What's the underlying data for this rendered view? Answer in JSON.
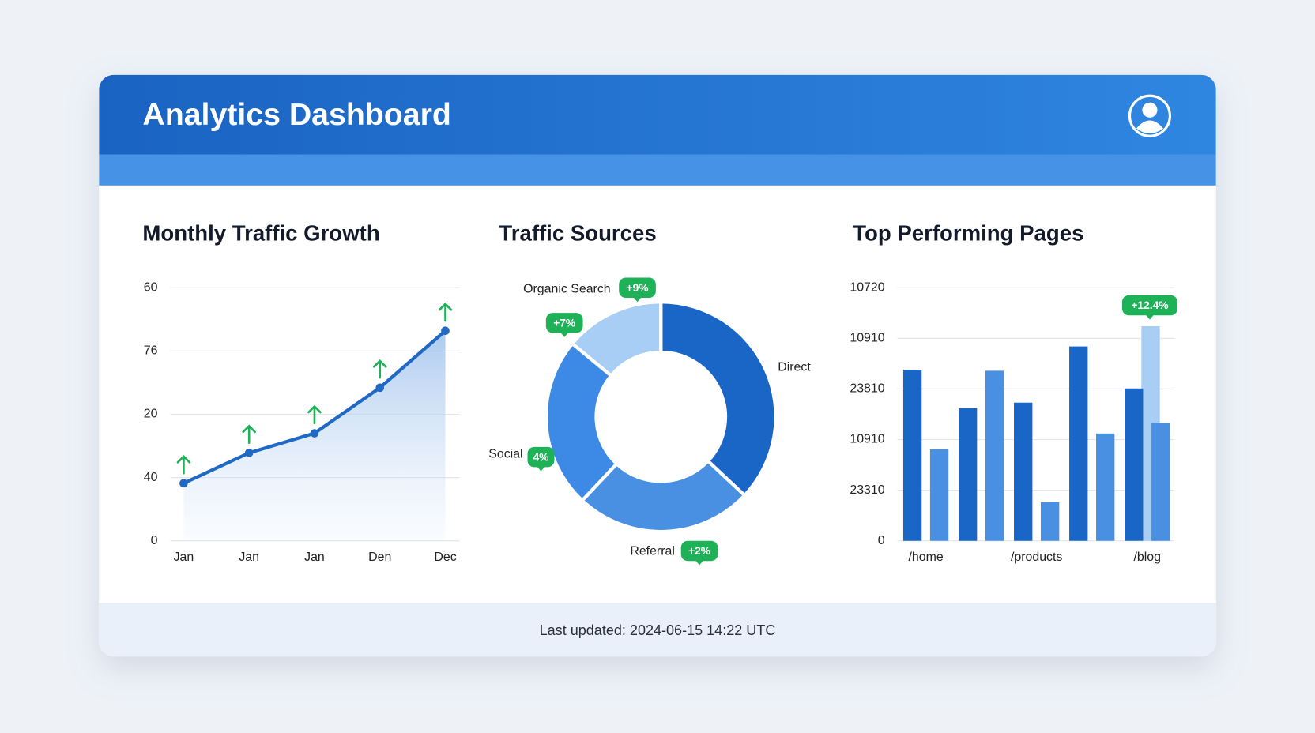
{
  "header": {
    "title": "Analytics Dashboard"
  },
  "footer": {
    "text": "Last updated: 2024-06-15 14:22 UTC"
  },
  "chart_data": [
    {
      "type": "line",
      "title": "Monthly Traffic Growth",
      "categories": [
        "Jan",
        "Jan",
        "Jan",
        "Den",
        "Dec"
      ],
      "values": [
        0.91,
        1.39,
        1.7,
        2.42,
        3.32
      ],
      "color": "#1f68c4",
      "ylim": [
        0,
        4
      ],
      "yticks": [
        0,
        {
          "value": 1,
          "label": "40"
        },
        {
          "value": 2,
          "label": "20"
        },
        {
          "value": 3,
          "label": "76"
        },
        {
          "value": 4,
          "label": "60"
        }
      ],
      "grid": true
    },
    {
      "type": "pie",
      "title": "Traffic Sources",
      "categories": [
        "Direct",
        "Referral",
        "Social",
        "Organic Search"
      ],
      "values": [
        37,
        25,
        24,
        14
      ],
      "colors": [
        "#1a66c7",
        "#4a90e2",
        "#3d8ae6",
        "#a9cef5"
      ],
      "badges": [
        "+9%",
        "+7%",
        "4%",
        "+2%"
      ]
    },
    {
      "type": "bar",
      "title": "Top Performing Pages",
      "categories": [
        "/home",
        null,
        "/products",
        null,
        "/blog"
      ],
      "series": [
        {
          "color": "#a9cef5",
          "values": [
            null,
            null,
            null,
            null,
            4.24
          ]
        },
        {
          "color": "#1a66c7",
          "values": [
            3.38,
            2.62,
            2.73,
            3.84,
            3.01
          ]
        },
        {
          "color": "#4a90e2",
          "values": [
            1.81,
            3.36,
            0.76,
            2.12,
            2.33
          ]
        }
      ],
      "ylim": [
        0,
        5
      ],
      "yticks": [
        0,
        {
          "value": 1,
          "label": "23310"
        },
        {
          "value": 2,
          "label": "10910"
        },
        {
          "value": 3,
          "label": "23810"
        },
        {
          "value": 4,
          "label": "10910"
        },
        {
          "value": 5,
          "label": "10720"
        }
      ],
      "grid": true,
      "badge": "+12.4%"
    }
  ]
}
